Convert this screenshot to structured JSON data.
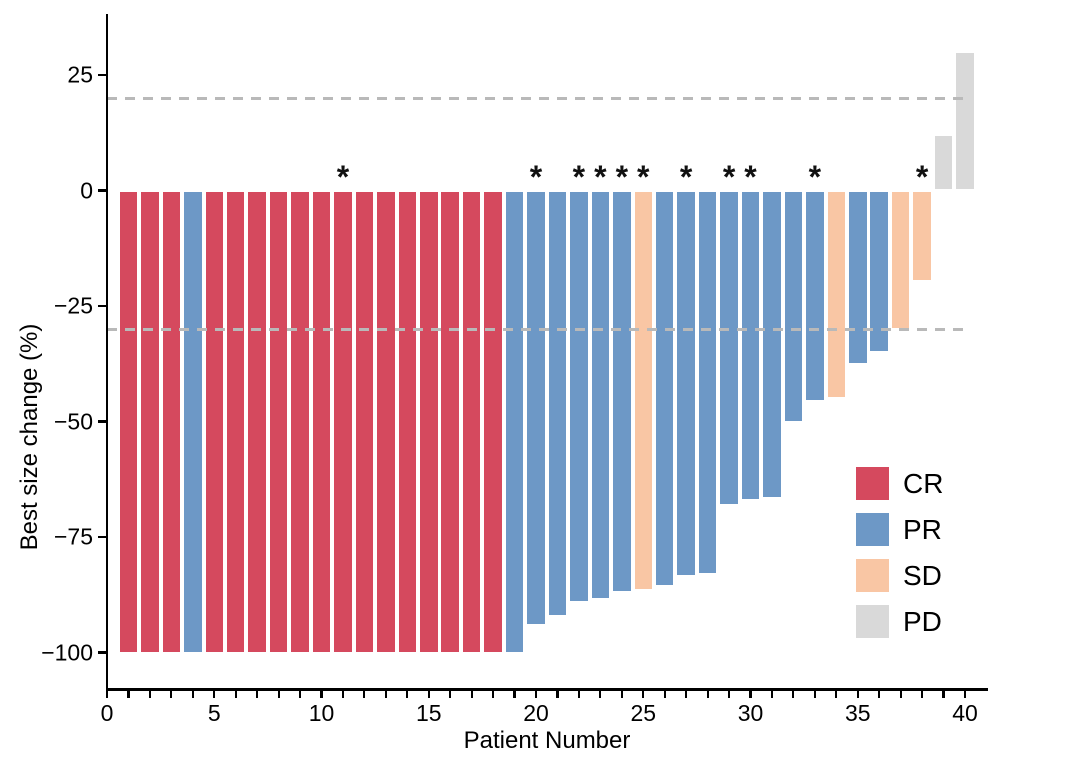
{
  "chart_data": {
    "type": "bar",
    "variant": "waterfall",
    "title": "",
    "xlabel": "Patient Number",
    "ylabel": "Best size change (%)",
    "x_axis": {
      "range": [
        0,
        40
      ],
      "minor_tick_every": 1,
      "major_tick_labels": [
        "0",
        "5",
        "10",
        "15",
        "20",
        "25",
        "30",
        "35",
        "40"
      ],
      "major_tick_values": [
        0,
        5,
        10,
        15,
        20,
        25,
        30,
        35,
        40
      ]
    },
    "y_axis": {
      "range": [
        -107,
        38
      ],
      "tick_values": [
        25,
        0,
        -25,
        -50,
        -75,
        -100
      ],
      "tick_labels": [
        "25",
        "0",
        "−25",
        "−50",
        "−75",
        "−100"
      ]
    },
    "reference_lines": [
      20,
      -30
    ],
    "reference_line_color": "#b9b9b9",
    "annotation_symbol": "*",
    "response_colors": {
      "CR": "#d5495e",
      "PR": "#6d98c6",
      "SD": "#f9c6a4",
      "PD": "#d9d9d9"
    },
    "legend": [
      {
        "label": "CR",
        "color": "#d5495e"
      },
      {
        "label": "PR",
        "color": "#6d98c6"
      },
      {
        "label": "SD",
        "color": "#f9c6a4"
      },
      {
        "label": "PD",
        "color": "#d9d9d9"
      }
    ],
    "patients": [
      {
        "patient": 1,
        "change": -100,
        "response": "CR",
        "star": false
      },
      {
        "patient": 2,
        "change": -100,
        "response": "CR",
        "star": false
      },
      {
        "patient": 3,
        "change": -100,
        "response": "CR",
        "star": false
      },
      {
        "patient": 4,
        "change": -100,
        "response": "PR",
        "star": false
      },
      {
        "patient": 5,
        "change": -100,
        "response": "CR",
        "star": false
      },
      {
        "patient": 6,
        "change": -100,
        "response": "CR",
        "star": false
      },
      {
        "patient": 7,
        "change": -100,
        "response": "CR",
        "star": false
      },
      {
        "patient": 8,
        "change": -100,
        "response": "CR",
        "star": false
      },
      {
        "patient": 9,
        "change": -100,
        "response": "CR",
        "star": false
      },
      {
        "patient": 10,
        "change": -100,
        "response": "CR",
        "star": false
      },
      {
        "patient": 11,
        "change": -100,
        "response": "CR",
        "star": true
      },
      {
        "patient": 12,
        "change": -100,
        "response": "CR",
        "star": false
      },
      {
        "patient": 13,
        "change": -100,
        "response": "CR",
        "star": false
      },
      {
        "patient": 14,
        "change": -100,
        "response": "CR",
        "star": false
      },
      {
        "patient": 15,
        "change": -100,
        "response": "CR",
        "star": false
      },
      {
        "patient": 16,
        "change": -100,
        "response": "CR",
        "star": false
      },
      {
        "patient": 17,
        "change": -100,
        "response": "CR",
        "star": false
      },
      {
        "patient": 18,
        "change": -100,
        "response": "CR",
        "star": false
      },
      {
        "patient": 19,
        "change": -100,
        "response": "PR",
        "star": false
      },
      {
        "patient": 20,
        "change": -94,
        "response": "PR",
        "star": true
      },
      {
        "patient": 21,
        "change": -92,
        "response": "PR",
        "star": false
      },
      {
        "patient": 22,
        "change": -89,
        "response": "PR",
        "star": true
      },
      {
        "patient": 23,
        "change": -88.5,
        "response": "PR",
        "star": true
      },
      {
        "patient": 24,
        "change": -87,
        "response": "PR",
        "star": true
      },
      {
        "patient": 25,
        "change": -86.5,
        "response": "SD",
        "star": true
      },
      {
        "patient": 26,
        "change": -85.5,
        "response": "PR",
        "star": false
      },
      {
        "patient": 27,
        "change": -83.5,
        "response": "PR",
        "star": true
      },
      {
        "patient": 28,
        "change": -83,
        "response": "PR",
        "star": false
      },
      {
        "patient": 29,
        "change": -68,
        "response": "PR",
        "star": true
      },
      {
        "patient": 30,
        "change": -67,
        "response": "PR",
        "star": true
      },
      {
        "patient": 31,
        "change": -66.5,
        "response": "PR",
        "star": false
      },
      {
        "patient": 32,
        "change": -50,
        "response": "PR",
        "star": false
      },
      {
        "patient": 33,
        "change": -45.5,
        "response": "PR",
        "star": true
      },
      {
        "patient": 34,
        "change": -45,
        "response": "SD",
        "star": false
      },
      {
        "patient": 35,
        "change": -37.5,
        "response": "PR",
        "star": false
      },
      {
        "patient": 36,
        "change": -35,
        "response": "PR",
        "star": false
      },
      {
        "patient": 37,
        "change": -30,
        "response": "SD",
        "star": false
      },
      {
        "patient": 38,
        "change": -19.5,
        "response": "SD",
        "star": true
      },
      {
        "patient": 39,
        "change": 12,
        "response": "PD",
        "star": false
      },
      {
        "patient": 40,
        "change": 30,
        "response": "PD",
        "star": false
      }
    ]
  }
}
